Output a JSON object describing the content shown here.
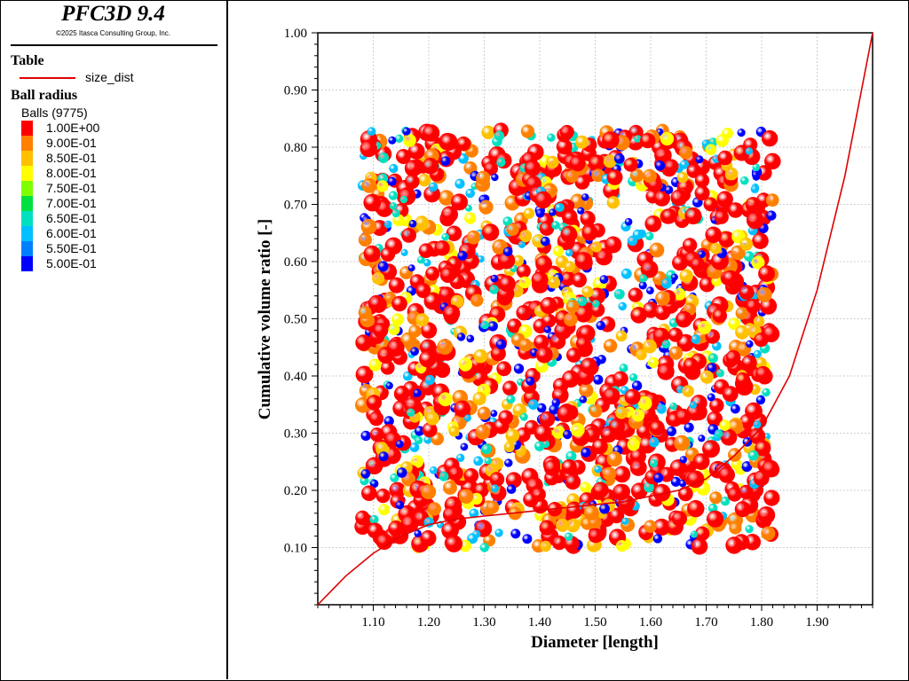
{
  "sidebar": {
    "title": "PFC3D 9.4",
    "copyright": "©2025 Itasca Consulting Group, Inc.",
    "table_heading": "Table",
    "table_series_label": "size_dist",
    "ball_heading": "Ball radius",
    "balls_count_label": "Balls (9775)",
    "colorbar": [
      {
        "label": "1.00E+00",
        "color": "#ff0000"
      },
      {
        "label": "9.00E-01",
        "color": "#ff8000"
      },
      {
        "label": "8.50E-01",
        "color": "#ffc000"
      },
      {
        "label": "8.00E-01",
        "color": "#ffff00"
      },
      {
        "label": "7.50E-01",
        "color": "#80ff00"
      },
      {
        "label": "7.00E-01",
        "color": "#00e040"
      },
      {
        "label": "6.50E-01",
        "color": "#00e0c0"
      },
      {
        "label": "6.00E-01",
        "color": "#00c0ff"
      },
      {
        "label": "5.50E-01",
        "color": "#0080ff"
      },
      {
        "label": "5.00E-01",
        "color": "#0000ff"
      }
    ]
  },
  "chart_data": {
    "type": "line",
    "xlabel": "Diameter [length]",
    "ylabel": "Cumulative volume ratio [-]",
    "xlim": [
      1.0,
      2.0
    ],
    "ylim": [
      0.0,
      1.0
    ],
    "xticks": [
      "1.10",
      "1.20",
      "1.30",
      "1.40",
      "1.50",
      "1.60",
      "1.70",
      "1.80",
      "1.90"
    ],
    "yticks": [
      "0.10",
      "0.20",
      "0.30",
      "0.40",
      "0.50",
      "0.60",
      "0.70",
      "0.80",
      "0.90",
      "1.00"
    ],
    "grid": true,
    "series": [
      {
        "name": "size_dist",
        "color": "#e00000",
        "x": [
          1.0,
          1.05,
          1.1,
          1.15,
          1.2,
          1.25,
          1.3,
          1.35,
          1.4,
          1.45,
          1.5,
          1.55,
          1.6,
          1.65,
          1.7,
          1.75,
          1.8,
          1.85,
          1.9,
          1.95,
          2.0
        ],
        "y": [
          0.0,
          0.05,
          0.09,
          0.12,
          0.14,
          0.15,
          0.155,
          0.16,
          0.165,
          0.17,
          0.175,
          0.18,
          0.19,
          0.2,
          0.22,
          0.26,
          0.31,
          0.4,
          0.55,
          0.75,
          1.0
        ]
      }
    ],
    "particle_cloud": {
      "x_range": [
        1.08,
        1.82
      ],
      "y_range": [
        0.1,
        0.83
      ],
      "colors": [
        "#ff0000",
        "#ff8000",
        "#ffc000",
        "#ffff00",
        "#00e0c0",
        "#00c0ff",
        "#0000ff"
      ]
    }
  }
}
